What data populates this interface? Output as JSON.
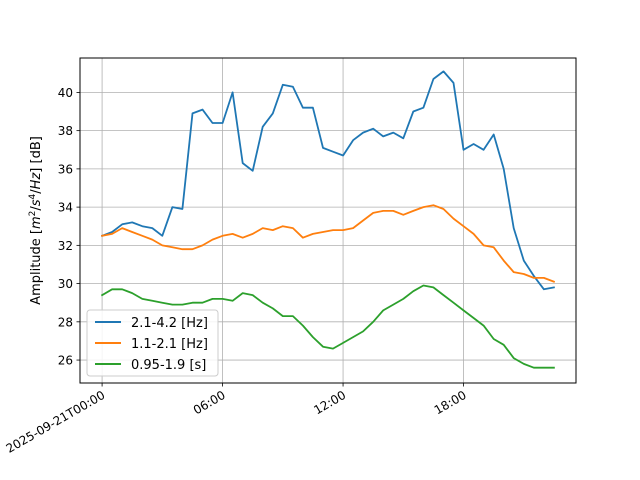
{
  "chart_data": {
    "type": "line",
    "ylabel_parts": [
      "Amplitude [",
      "m",
      "2",
      "/",
      "s",
      "4",
      "/",
      "Hz",
      "] [dB]"
    ],
    "xlabel": "",
    "x_ticks": [
      {
        "hour": 0,
        "label": "2025-09-21T00:00"
      },
      {
        "hour": 6,
        "label": "06:00"
      },
      {
        "hour": 12,
        "label": "12:00"
      },
      {
        "hour": 18,
        "label": "18:00"
      }
    ],
    "y_ticks": [
      26,
      28,
      30,
      32,
      34,
      36,
      38,
      40
    ],
    "xlim_hours": [
      -1.1,
      23.6
    ],
    "ylim": [
      24.8,
      41.8
    ],
    "grid": true,
    "legend_position": "lower-left",
    "series": [
      {
        "name": "2.1-4.2 [Hz]",
        "color": "#1f77b4",
        "x_hours": [
          0,
          0.5,
          1,
          1.5,
          2,
          2.5,
          3,
          3.5,
          4,
          4.5,
          5,
          5.5,
          6,
          6.5,
          7,
          7.5,
          8,
          8.5,
          9,
          9.5,
          10,
          10.5,
          11,
          11.5,
          12,
          12.5,
          13,
          13.5,
          14,
          14.5,
          15,
          15.5,
          16,
          16.5,
          17,
          17.5,
          18,
          18.5,
          19,
          19.5,
          20,
          20.5,
          21,
          21.5,
          22,
          22.5
        ],
        "values": [
          32.5,
          32.7,
          33.1,
          33.2,
          33.0,
          32.9,
          32.5,
          34.0,
          33.9,
          38.9,
          39.1,
          38.4,
          38.4,
          40.0,
          36.3,
          35.9,
          38.2,
          38.9,
          40.4,
          40.3,
          39.2,
          39.2,
          37.1,
          36.9,
          36.7,
          37.5,
          37.9,
          38.1,
          37.7,
          37.9,
          37.6,
          39.0,
          39.2,
          40.7,
          41.1,
          40.5,
          37.0,
          37.3,
          37.0,
          37.8,
          36.0,
          32.9,
          31.2,
          30.4,
          29.7,
          29.8
        ]
      },
      {
        "name": "1.1-2.1 [Hz]",
        "color": "#ff7f0e",
        "x_hours": [
          0,
          0.5,
          1,
          1.5,
          2,
          2.5,
          3,
          3.5,
          4,
          4.5,
          5,
          5.5,
          6,
          6.5,
          7,
          7.5,
          8,
          8.5,
          9,
          9.5,
          10,
          10.5,
          11,
          11.5,
          12,
          12.5,
          13,
          13.5,
          14,
          14.5,
          15,
          15.5,
          16,
          16.5,
          17,
          17.5,
          18,
          18.5,
          19,
          19.5,
          20,
          20.5,
          21,
          21.5,
          22,
          22.5
        ],
        "values": [
          32.5,
          32.6,
          32.9,
          32.7,
          32.5,
          32.3,
          32.0,
          31.9,
          31.8,
          31.8,
          32.0,
          32.3,
          32.5,
          32.6,
          32.4,
          32.6,
          32.9,
          32.8,
          33.0,
          32.9,
          32.4,
          32.6,
          32.7,
          32.8,
          32.8,
          32.9,
          33.3,
          33.7,
          33.8,
          33.8,
          33.6,
          33.8,
          34.0,
          34.1,
          33.9,
          33.4,
          33.0,
          32.6,
          32.0,
          31.9,
          31.2,
          30.6,
          30.5,
          30.3,
          30.3,
          30.1
        ]
      },
      {
        "name": "0.95-1.9 [s]",
        "color": "#2ca02c",
        "x_hours": [
          0,
          0.5,
          1,
          1.5,
          2,
          2.5,
          3,
          3.5,
          4,
          4.5,
          5,
          5.5,
          6,
          6.5,
          7,
          7.5,
          8,
          8.5,
          9,
          9.5,
          10,
          10.5,
          11,
          11.5,
          12,
          12.5,
          13,
          13.5,
          14,
          14.5,
          15,
          15.5,
          16,
          16.5,
          17,
          17.5,
          18,
          18.5,
          19,
          19.5,
          20,
          20.5,
          21,
          21.5,
          22,
          22.5
        ],
        "values": [
          29.4,
          29.7,
          29.7,
          29.5,
          29.2,
          29.1,
          29.0,
          28.9,
          28.9,
          29.0,
          29.0,
          29.2,
          29.2,
          29.1,
          29.5,
          29.4,
          29.0,
          28.7,
          28.3,
          28.3,
          27.8,
          27.2,
          26.7,
          26.6,
          26.9,
          27.2,
          27.5,
          28.0,
          28.6,
          28.9,
          29.2,
          29.6,
          29.9,
          29.8,
          29.4,
          29.0,
          28.6,
          28.2,
          27.8,
          27.1,
          26.8,
          26.1,
          25.8,
          25.6,
          25.6,
          25.6
        ]
      }
    ]
  }
}
